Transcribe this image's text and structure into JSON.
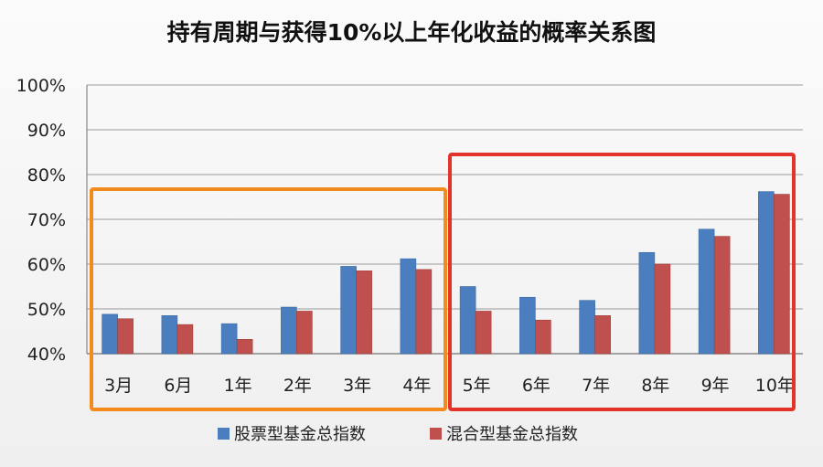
{
  "chart_data": {
    "type": "bar",
    "title": "持有周期与获得10%以上年化收益的概率关系图",
    "categories": [
      "3月",
      "6月",
      "1年",
      "2年",
      "3年",
      "4年",
      "5年",
      "6年",
      "7年",
      "8年",
      "9年",
      "10年"
    ],
    "series": [
      {
        "name": "股票型基金总指数",
        "color": "#4a7ebf",
        "values": [
          48.8,
          48.5,
          46.7,
          50.4,
          59.5,
          61.2,
          55.0,
          52.6,
          51.9,
          62.6,
          67.8,
          76.2
        ]
      },
      {
        "name": "混合型基金总指数",
        "color": "#c0504d",
        "values": [
          47.8,
          46.5,
          43.2,
          49.5,
          58.5,
          58.8,
          49.5,
          47.5,
          48.5,
          60.0,
          66.2,
          75.6
        ]
      }
    ],
    "yticks": [
      "40%",
      "50%",
      "60%",
      "70%",
      "80%",
      "90%",
      "100%"
    ],
    "ylim": [
      40,
      100
    ],
    "grid": true,
    "legend_position": "bottom",
    "highlight_groups": [
      {
        "name": "short-term-group",
        "from": "3月",
        "to": "4年",
        "color": "#f28a1c"
      },
      {
        "name": "long-term-group",
        "from": "5年",
        "to": "10年",
        "color": "#e2342b"
      }
    ]
  }
}
